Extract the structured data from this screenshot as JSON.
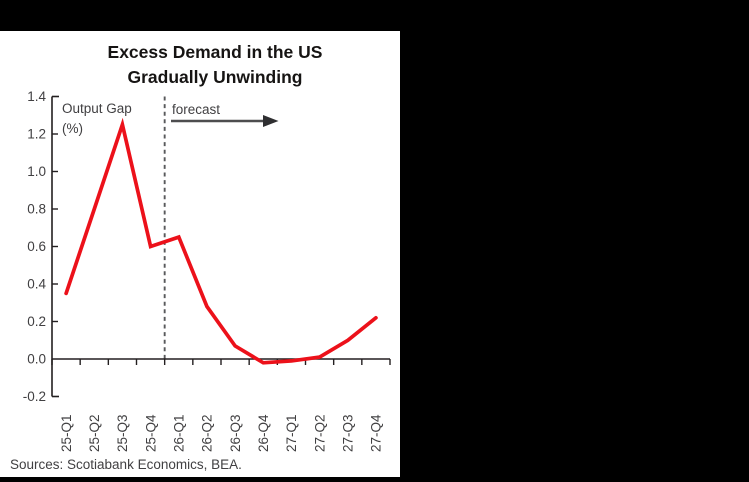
{
  "canvas": {
    "background_color": "#000000",
    "panel_background_color": "#ffffff"
  },
  "chart_data": {
    "type": "line",
    "title": "Excess Demand in the US Gradually Unwinding",
    "title_lines": [
      "Excess Demand in the US",
      "Gradually Unwinding"
    ],
    "axis_unit_label_lines": [
      "Output Gap",
      "(%)"
    ],
    "forecast_label": "forecast",
    "categories": [
      "25-Q1",
      "25-Q2",
      "25-Q3",
      "25-Q4",
      "26-Q1",
      "26-Q2",
      "26-Q3",
      "26-Q4",
      "27-Q1",
      "27-Q2",
      "27-Q3",
      "27-Q4"
    ],
    "series": [
      {
        "name": "Output Gap (%)",
        "color": "#EC111A",
        "values": [
          0.35,
          0.8,
          1.25,
          0.6,
          0.65,
          0.28,
          0.07,
          -0.02,
          -0.01,
          0.01,
          0.1,
          0.22
        ]
      }
    ],
    "ylim": [
      -0.2,
      1.4
    ],
    "ytick_labels": [
      "1.4",
      "1.2",
      "1.0",
      "0.8",
      "0.6",
      "0.4",
      "0.2",
      "0.0",
      "-0.2"
    ],
    "forecast_boundary_after_category": "25-Q4",
    "forecast_boundary_index": 4,
    "grid": false,
    "legend_position": "inside-top-left",
    "source": "Sources: Scotiabank Economics, BEA."
  },
  "colors": {
    "line": "#EC111A",
    "dashed_divider": "#58595b",
    "axis": "#231f20",
    "tick_text": "#414042",
    "arrow": "#4d4d4f"
  }
}
